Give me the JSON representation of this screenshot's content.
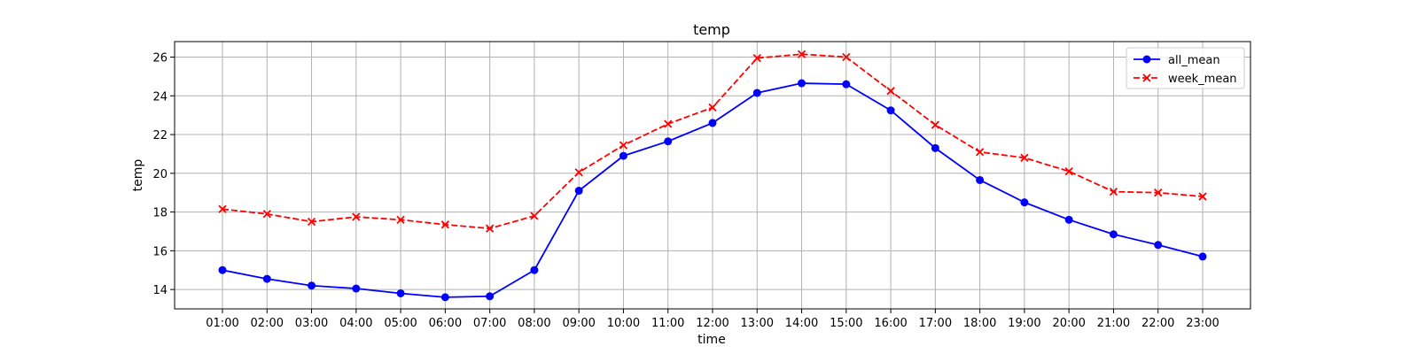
{
  "chart_data": {
    "type": "line",
    "title": "temp",
    "xlabel": "time",
    "ylabel": "temp",
    "categories": [
      "01:00",
      "02:00",
      "03:00",
      "04:00",
      "05:00",
      "06:00",
      "07:00",
      "08:00",
      "09:00",
      "10:00",
      "11:00",
      "12:00",
      "13:00",
      "14:00",
      "15:00",
      "16:00",
      "17:00",
      "18:00",
      "19:00",
      "20:00",
      "21:00",
      "22:00",
      "23:00"
    ],
    "ylim": [
      13,
      26.8
    ],
    "yticks": [
      14,
      16,
      18,
      20,
      22,
      24,
      26
    ],
    "grid": true,
    "legend_position": "top-right",
    "series": [
      {
        "name": "all_mean",
        "color": "#0000ff",
        "linestyle": "solid",
        "marker": "circle",
        "values": [
          15.0,
          14.55,
          14.2,
          14.05,
          13.8,
          13.6,
          13.65,
          15.0,
          19.1,
          20.9,
          21.65,
          22.6,
          24.15,
          24.65,
          24.6,
          23.25,
          21.3,
          19.65,
          18.5,
          17.6,
          16.85,
          16.3,
          15.7
        ]
      },
      {
        "name": "week_mean",
        "color": "#ff0000",
        "linestyle": "dashed",
        "marker": "x",
        "values": [
          18.15,
          17.9,
          17.5,
          17.75,
          17.6,
          17.35,
          17.15,
          17.8,
          20.05,
          21.45,
          22.55,
          23.4,
          25.95,
          26.15,
          26.0,
          24.25,
          22.5,
          21.1,
          20.8,
          20.1,
          19.05,
          19.0,
          18.8
        ]
      }
    ]
  }
}
